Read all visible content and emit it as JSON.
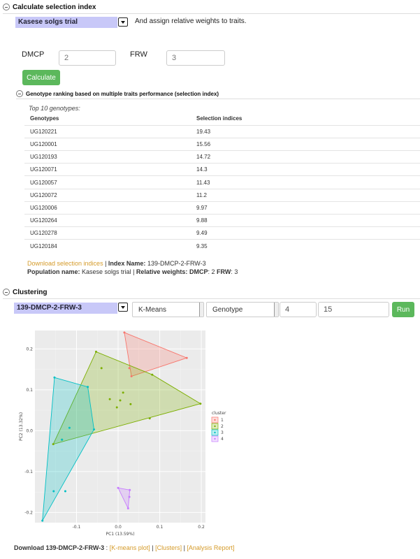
{
  "section1": {
    "title": "Calculate selection index",
    "population_select": "Kasese solgs trial",
    "assign_text": "And assign relative weights to traits.",
    "traits": [
      {
        "label": "DMCP",
        "value": "2"
      },
      {
        "label": "FRW",
        "value": "3"
      }
    ],
    "calculate_label": "Calculate"
  },
  "section2": {
    "title": "Genotype ranking based on multiple traits performance (selection index)",
    "caption": "Top 10 genotypes:",
    "columns": [
      "Genotypes",
      "Selection indices"
    ],
    "rows": [
      [
        "UG120221",
        "19.43"
      ],
      [
        "UG120001",
        "15.56"
      ],
      [
        "UG120193",
        "14.72"
      ],
      [
        "UG120071",
        "14.3"
      ],
      [
        "UG120057",
        "11.43"
      ],
      [
        "UG120072",
        "11.2"
      ],
      [
        "UG120006",
        "9.97"
      ],
      [
        "UG120264",
        "9.88"
      ],
      [
        "UG120278",
        "9.49"
      ],
      [
        "UG120184",
        "9.35"
      ]
    ],
    "download_link": "Download selection indices",
    "sep": " | ",
    "index_name_label": "Index Name:",
    "index_name_value": " 139-DMCP-2-FRW-3",
    "population_label": "Population name:",
    "population_value": " Kasese solgs trial",
    "weights_label": "Relative weights:",
    "weights_dmcp_label": "DMCP",
    "weights_dmcp_value": ": 2",
    "weights_frw_label": "FRW",
    "weights_frw_value": ": 3"
  },
  "clustering": {
    "title": "Clustering",
    "dataset_select": "139-DMCP-2-FRW-3",
    "method": "K-Means",
    "data_type": "Genotype",
    "k_value": "4",
    "selection_prop": "15",
    "run_label": "Run",
    "download_prefix": "Download 139-DMCP-2-FRW-3",
    "download_colon": " : ",
    "links": [
      "[K-means plot]",
      "[Clusters]",
      "[Analysis Report]"
    ],
    "link_sep": " | "
  },
  "chart_data": {
    "type": "scatter",
    "xlabel": "PC1 (13.59%)",
    "ylabel": "PC2 (13.32%)",
    "xlim": [
      -0.2,
      0.21
    ],
    "ylim": [
      -0.225,
      0.245
    ],
    "xticks": [
      -0.1,
      0.0,
      0.1,
      0.2
    ],
    "xtick_labels": [
      "-0.1",
      "0.0",
      "0.1",
      "0.2"
    ],
    "yticks": [
      -0.2,
      -0.1,
      0.0,
      0.1,
      0.2
    ],
    "ytick_labels": [
      "-0.2",
      "-0.1",
      "0.0",
      "0.1",
      "0.2"
    ],
    "grid": true,
    "legend_title": "cluster",
    "legend_position": "right",
    "series": [
      {
        "name": "1",
        "color": "#f8766d",
        "points": [
          [
            0.015,
            0.24
          ],
          [
            0.165,
            0.178
          ],
          [
            0.032,
            0.133
          ],
          [
            0.027,
            0.153
          ]
        ],
        "hull": [
          [
            0.015,
            0.24
          ],
          [
            0.165,
            0.178
          ],
          [
            0.032,
            0.133
          ]
        ]
      },
      {
        "name": "2",
        "color": "#7cae00",
        "points": [
          [
            -0.053,
            0.193
          ],
          [
            0.198,
            0.066
          ],
          [
            -0.156,
            -0.033
          ],
          [
            -0.04,
            0.153
          ],
          [
            0.082,
            0.137
          ],
          [
            -0.02,
            0.077
          ],
          [
            0.005,
            0.074
          ],
          [
            -0.003,
            0.057
          ],
          [
            0.012,
            0.093
          ],
          [
            0.03,
            0.065
          ],
          [
            0.076,
            0.03
          ],
          [
            -0.135,
            -0.022
          ]
        ],
        "hull": [
          [
            -0.053,
            0.193
          ],
          [
            0.082,
            0.137
          ],
          [
            0.198,
            0.066
          ],
          [
            -0.156,
            -0.033
          ]
        ]
      },
      {
        "name": "3",
        "color": "#00bfc4",
        "points": [
          [
            -0.153,
            0.13
          ],
          [
            -0.073,
            0.107
          ],
          [
            -0.058,
            0.003
          ],
          [
            -0.182,
            -0.22
          ],
          [
            -0.155,
            -0.148
          ],
          [
            -0.127,
            -0.148
          ],
          [
            -0.117,
            0.007
          ],
          [
            -0.135,
            -0.022
          ]
        ],
        "hull": [
          [
            -0.153,
            0.13
          ],
          [
            -0.073,
            0.107
          ],
          [
            -0.058,
            0.003
          ],
          [
            -0.182,
            -0.22
          ]
        ]
      },
      {
        "name": "4",
        "color": "#c77cff",
        "points": [
          [
            0.0,
            -0.14
          ],
          [
            0.028,
            -0.145
          ],
          [
            0.027,
            -0.162
          ],
          [
            0.024,
            -0.19
          ]
        ],
        "hull": [
          [
            0.0,
            -0.14
          ],
          [
            0.028,
            -0.145
          ],
          [
            0.024,
            -0.19
          ]
        ]
      }
    ]
  }
}
